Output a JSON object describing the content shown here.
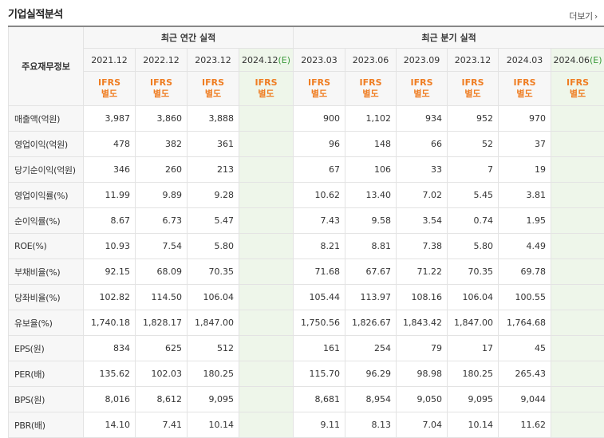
{
  "header": {
    "title": "기업실적분석",
    "more_label": "더보기",
    "more_icon": "chevron-right-icon"
  },
  "table": {
    "corner_label": "주요재무정보",
    "annual_group_label": "최근 연간 실적",
    "quarter_group_label": "최근 분기 실적",
    "annual_periods": [
      "2021.12",
      "2022.12",
      "2023.12",
      "2024.12(E)"
    ],
    "quarter_periods": [
      "2023.03",
      "2023.06",
      "2023.09",
      "2023.12",
      "2024.03",
      "2024.06(E)"
    ],
    "ifrs_line1": "IFRS",
    "ifrs_line2": "별도",
    "colors": {
      "ifrs": "#ef7d22",
      "estimate_bg": "#eef6ea",
      "header_bg": "#f7f7f7"
    },
    "rows": [
      {
        "label": "매출액(억원)",
        "annual": [
          "3,987",
          "3,860",
          "3,888",
          ""
        ],
        "quarter": [
          "900",
          "1,102",
          "934",
          "952",
          "970",
          ""
        ]
      },
      {
        "label": "영업이익(억원)",
        "annual": [
          "478",
          "382",
          "361",
          ""
        ],
        "quarter": [
          "96",
          "148",
          "66",
          "52",
          "37",
          ""
        ]
      },
      {
        "label": "당기순이익(억원)",
        "annual": [
          "346",
          "260",
          "213",
          ""
        ],
        "quarter": [
          "67",
          "106",
          "33",
          "7",
          "19",
          ""
        ]
      },
      {
        "label": "영업이익률(%)",
        "annual": [
          "11.99",
          "9.89",
          "9.28",
          ""
        ],
        "quarter": [
          "10.62",
          "13.40",
          "7.02",
          "5.45",
          "3.81",
          ""
        ]
      },
      {
        "label": "순이익률(%)",
        "annual": [
          "8.67",
          "6.73",
          "5.47",
          ""
        ],
        "quarter": [
          "7.43",
          "9.58",
          "3.54",
          "0.74",
          "1.95",
          ""
        ]
      },
      {
        "label": "ROE(%)",
        "annual": [
          "10.93",
          "7.54",
          "5.80",
          ""
        ],
        "quarter": [
          "8.21",
          "8.81",
          "7.38",
          "5.80",
          "4.49",
          ""
        ]
      },
      {
        "label": "부채비율(%)",
        "annual": [
          "92.15",
          "68.09",
          "70.35",
          ""
        ],
        "quarter": [
          "71.68",
          "67.67",
          "71.22",
          "70.35",
          "69.78",
          ""
        ]
      },
      {
        "label": "당좌비율(%)",
        "annual": [
          "102.82",
          "114.50",
          "106.04",
          ""
        ],
        "quarter": [
          "105.44",
          "113.97",
          "108.16",
          "106.04",
          "100.55",
          ""
        ]
      },
      {
        "label": "유보율(%)",
        "annual": [
          "1,740.18",
          "1,828.17",
          "1,847.00",
          ""
        ],
        "quarter": [
          "1,750.56",
          "1,826.67",
          "1,843.42",
          "1,847.00",
          "1,764.68",
          ""
        ]
      },
      {
        "label": "EPS(원)",
        "annual": [
          "834",
          "625",
          "512",
          ""
        ],
        "quarter": [
          "161",
          "254",
          "79",
          "17",
          "45",
          ""
        ]
      },
      {
        "label": "PER(배)",
        "annual": [
          "135.62",
          "102.03",
          "180.25",
          ""
        ],
        "quarter": [
          "115.70",
          "96.29",
          "98.98",
          "180.25",
          "265.43",
          ""
        ]
      },
      {
        "label": "BPS(원)",
        "annual": [
          "8,016",
          "8,612",
          "9,095",
          ""
        ],
        "quarter": [
          "8,681",
          "8,954",
          "9,050",
          "9,095",
          "9,044",
          ""
        ]
      },
      {
        "label": "PBR(배)",
        "annual": [
          "14.10",
          "7.41",
          "10.14",
          ""
        ],
        "quarter": [
          "9.11",
          "8.13",
          "7.04",
          "10.14",
          "11.62",
          ""
        ]
      }
    ]
  }
}
